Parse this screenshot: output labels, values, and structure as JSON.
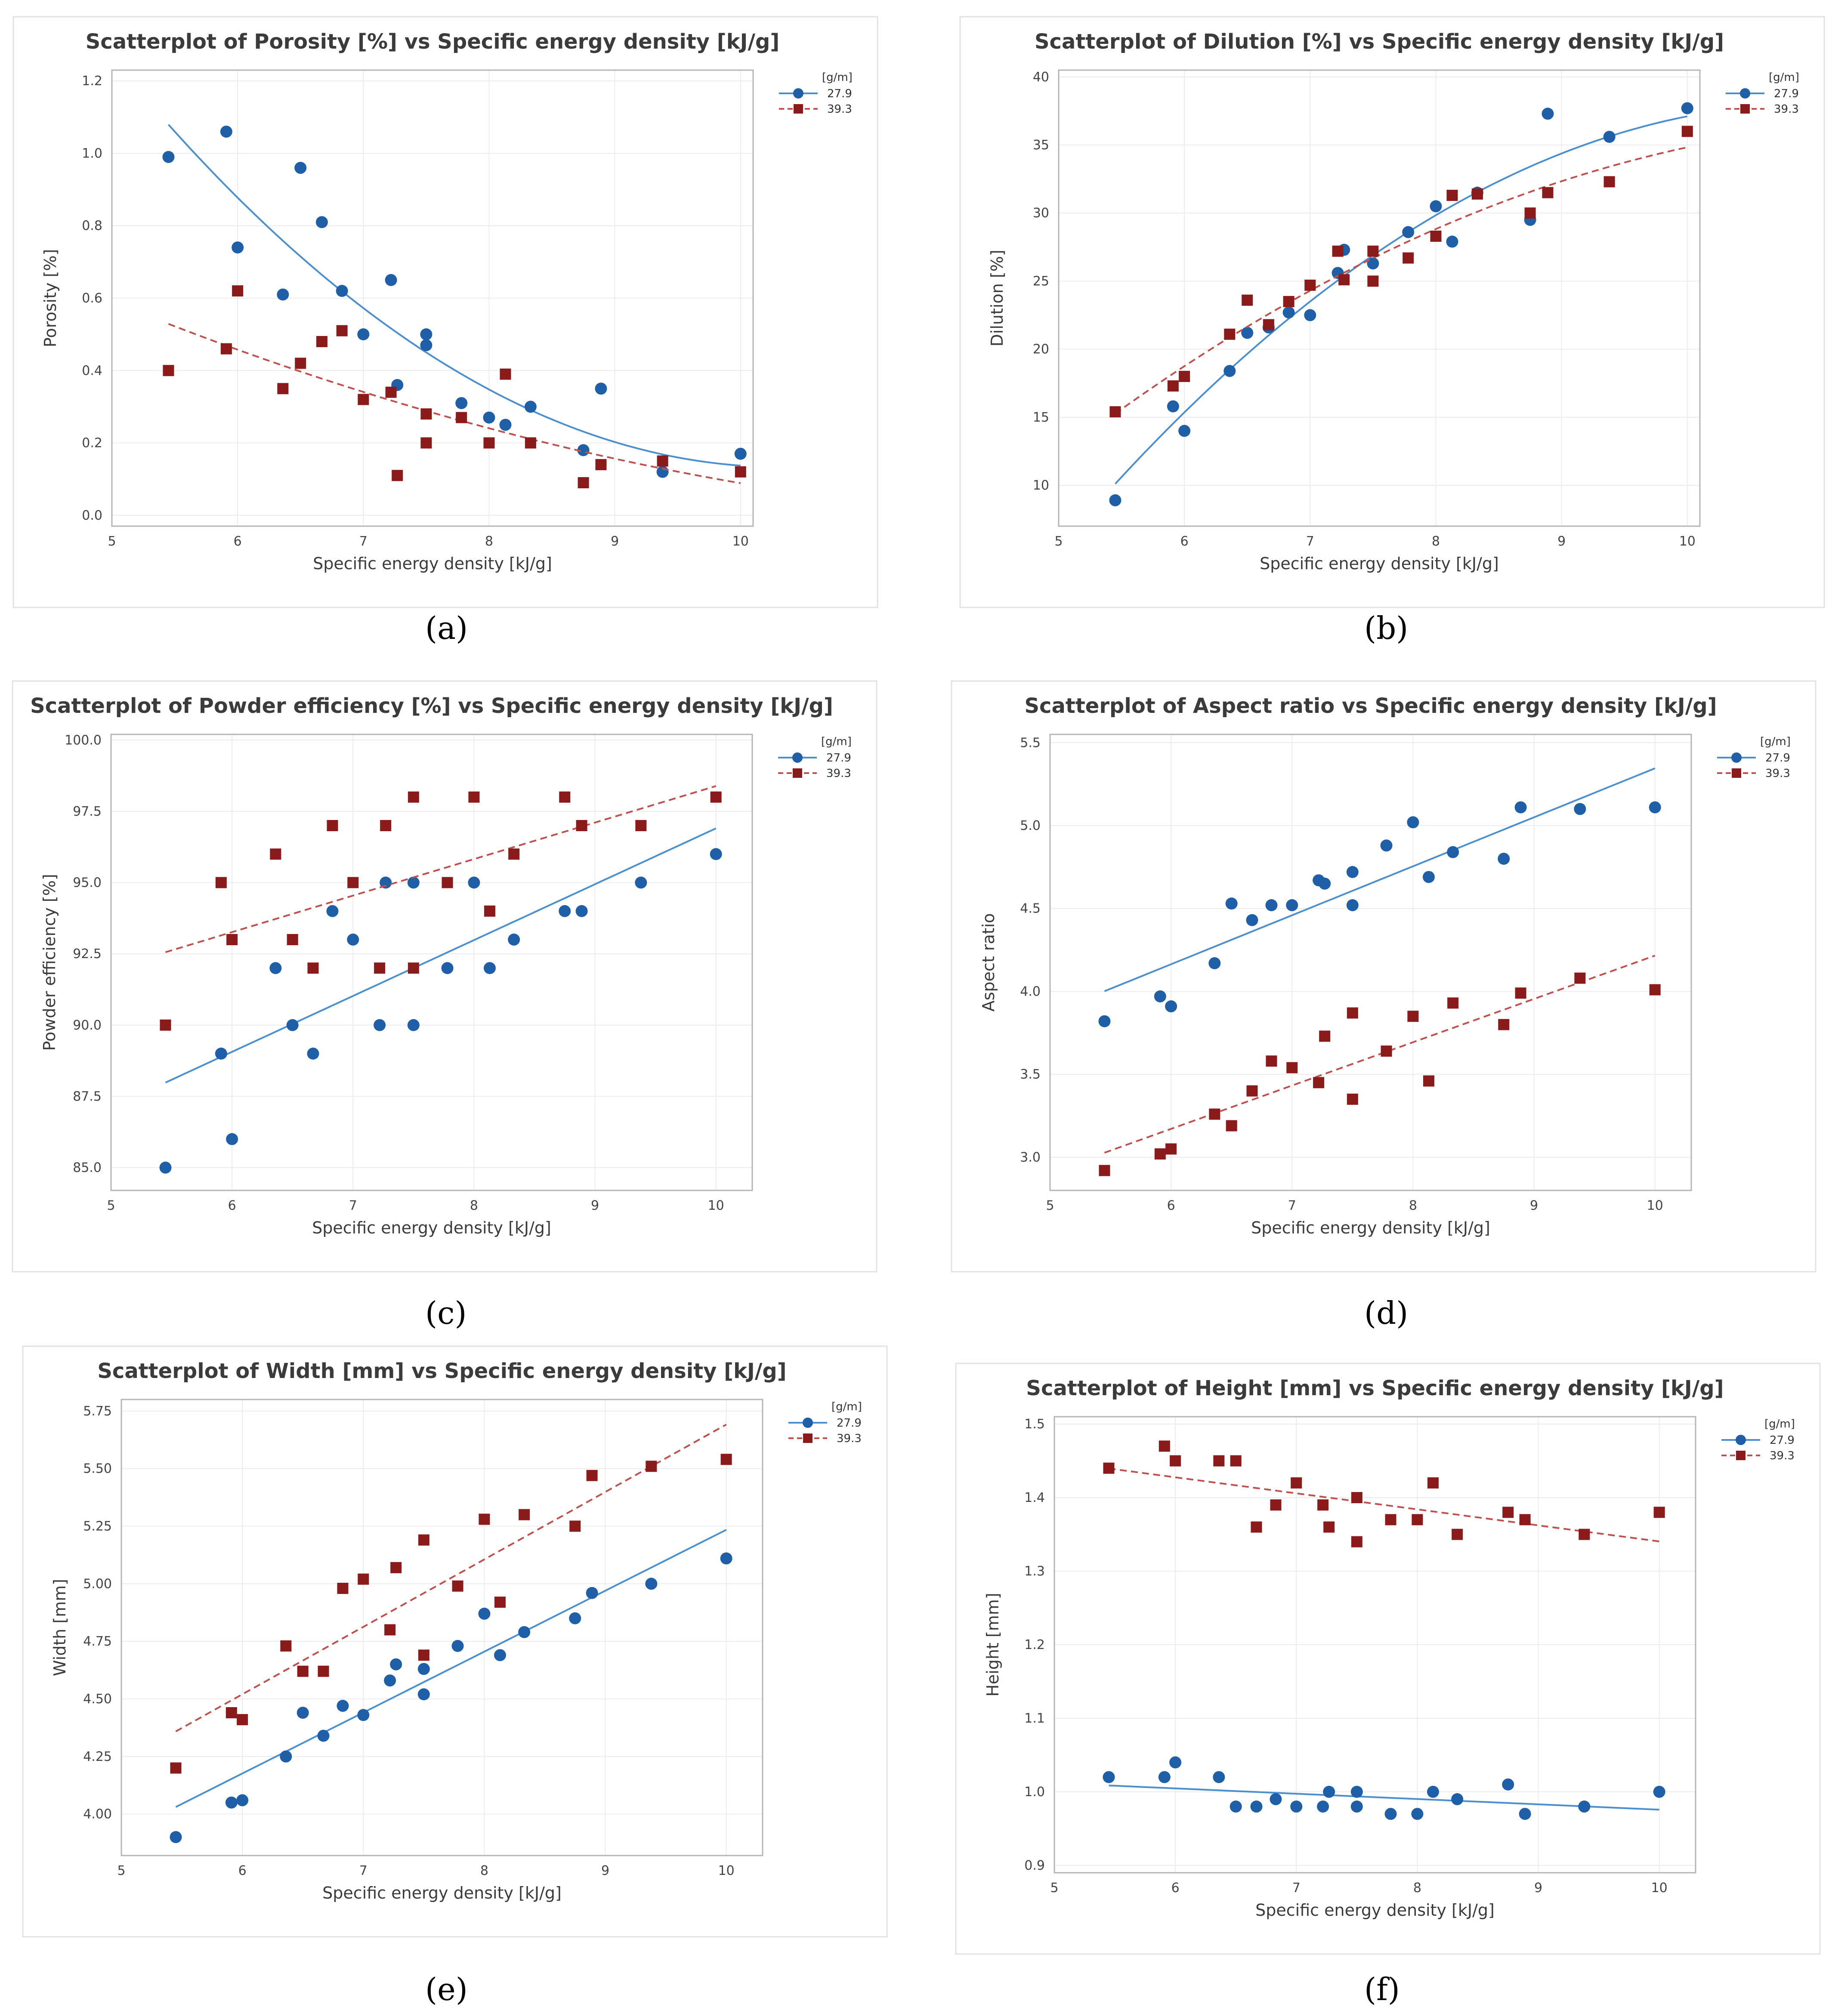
{
  "chart_data": [
    {
      "id": "a",
      "type": "scatter",
      "title": "Scatterplot of Porosity [%] vs Specific energy density [kJ/g]",
      "xlabel": "Specific energy density [kJ/g]",
      "ylabel": "Porosity [%]",
      "xlim": [
        5,
        10.1
      ],
      "ylim": [
        -0.03,
        1.23
      ],
      "xticks": [
        5,
        6,
        7,
        8,
        9,
        10
      ],
      "yticks": [
        0.0,
        0.2,
        0.4,
        0.6,
        0.8,
        1.0,
        1.2
      ],
      "ydec": 1,
      "legend_title": "[g/m]",
      "series": [
        {
          "name": "27.9",
          "marker": "circle",
          "color": "#1f5fa8",
          "line_color": "#4a8fce",
          "fit": "quadratic",
          "x": [
            5.45,
            5.91,
            6.0,
            6.36,
            6.5,
            6.67,
            6.83,
            7.0,
            7.22,
            7.27,
            7.5,
            7.5,
            7.78,
            8.0,
            8.13,
            8.33,
            8.75,
            8.89,
            9.38,
            10.0
          ],
          "y": [
            0.99,
            1.06,
            0.74,
            0.61,
            0.96,
            0.81,
            0.62,
            0.5,
            0.65,
            0.36,
            0.47,
            0.5,
            0.31,
            0.27,
            0.25,
            0.3,
            0.18,
            0.35,
            0.12,
            0.17
          ]
        },
        {
          "name": "39.3",
          "marker": "square",
          "color": "#8b1a1a",
          "line_color": "#c0504d",
          "fit": "quadratic",
          "dashed": true,
          "x": [
            5.45,
            5.91,
            6.0,
            6.36,
            6.5,
            6.67,
            6.83,
            7.0,
            7.22,
            7.27,
            7.5,
            7.5,
            7.78,
            8.0,
            8.13,
            8.33,
            8.75,
            8.89,
            9.38,
            10.0
          ],
          "y": [
            0.4,
            0.46,
            0.62,
            0.35,
            0.42,
            0.48,
            0.51,
            0.32,
            0.34,
            0.11,
            0.28,
            0.2,
            0.27,
            0.2,
            0.39,
            0.2,
            0.09,
            0.14,
            0.15,
            0.12
          ]
        }
      ]
    },
    {
      "id": "b",
      "type": "scatter",
      "title": "Scatterplot of Dilution [%] vs Specific energy density [kJ/g]",
      "xlabel": "Specific energy density [kJ/g]",
      "ylabel": "Dilution [%]",
      "xlim": [
        5,
        10.1
      ],
      "ylim": [
        7,
        40.5
      ],
      "xticks": [
        5,
        6,
        7,
        8,
        9,
        10
      ],
      "yticks": [
        10,
        15,
        20,
        25,
        30,
        35,
        40
      ],
      "ydec": 0,
      "legend_title": "[g/m]",
      "series": [
        {
          "name": "27.9",
          "marker": "circle",
          "color": "#1f5fa8",
          "line_color": "#4a8fce",
          "fit": "quadratic",
          "x": [
            5.45,
            5.91,
            6.0,
            6.36,
            6.5,
            6.67,
            6.83,
            7.0,
            7.22,
            7.27,
            7.5,
            7.78,
            8.0,
            8.13,
            8.33,
            8.75,
            8.89,
            9.38,
            10.0
          ],
          "y": [
            8.9,
            15.8,
            14.0,
            18.4,
            21.2,
            21.6,
            22.7,
            22.5,
            25.6,
            27.3,
            26.3,
            28.6,
            30.5,
            27.9,
            31.5,
            29.5,
            37.3,
            35.6,
            37.7
          ]
        },
        {
          "name": "39.3",
          "marker": "square",
          "color": "#8b1a1a",
          "line_color": "#c0504d",
          "fit": "quadratic",
          "dashed": true,
          "x": [
            5.45,
            5.91,
            6.0,
            6.36,
            6.5,
            6.67,
            6.83,
            7.0,
            7.22,
            7.27,
            7.5,
            7.5,
            7.78,
            8.0,
            8.13,
            8.33,
            8.75,
            8.89,
            9.38,
            10.0
          ],
          "y": [
            15.4,
            17.3,
            18.0,
            21.1,
            23.6,
            21.8,
            23.5,
            24.7,
            27.2,
            25.1,
            27.2,
            25.0,
            26.7,
            28.3,
            31.3,
            31.4,
            30.0,
            31.5,
            32.3,
            36.0
          ]
        }
      ]
    },
    {
      "id": "c",
      "type": "scatter",
      "title": "Scatterplot of Powder efficiency [%] vs Specific energy density [kJ/g]",
      "xlabel": "Specific energy density [kJ/g]",
      "ylabel": "Powder efficiency [%]",
      "xlim": [
        5,
        10.3
      ],
      "ylim": [
        84.2,
        100.2
      ],
      "xticks": [
        5,
        6,
        7,
        8,
        9,
        10
      ],
      "yticks": [
        85.0,
        87.5,
        90.0,
        92.5,
        95.0,
        97.5,
        100.0
      ],
      "ydec": 1,
      "legend_title": "[g/m]",
      "series": [
        {
          "name": "27.9",
          "marker": "circle",
          "color": "#1f5fa8",
          "line_color": "#4a8fce",
          "fit": "linear",
          "x": [
            5.45,
            5.91,
            6.0,
            6.36,
            6.5,
            6.67,
            6.83,
            7.0,
            7.22,
            7.27,
            7.5,
            7.5,
            7.78,
            8.0,
            8.13,
            8.33,
            8.75,
            8.89,
            9.38,
            10.0
          ],
          "y": [
            85,
            89,
            86,
            92,
            90,
            89,
            94,
            93,
            90,
            95,
            95,
            90,
            92,
            95,
            92,
            93,
            94,
            94,
            95,
            96
          ]
        },
        {
          "name": "39.3",
          "marker": "square",
          "color": "#8b1a1a",
          "line_color": "#c0504d",
          "fit": "linear",
          "dashed": true,
          "x": [
            5.45,
            5.91,
            6.0,
            6.36,
            6.5,
            6.67,
            6.83,
            7.0,
            7.22,
            7.27,
            7.5,
            7.5,
            7.78,
            8.0,
            8.13,
            8.33,
            8.75,
            8.89,
            9.38,
            10.0
          ],
          "y": [
            90,
            95,
            93,
            96,
            93,
            92,
            97,
            95,
            92,
            97,
            98,
            92,
            95,
            98,
            94,
            96,
            98,
            97,
            97,
            98
          ]
        }
      ]
    },
    {
      "id": "d",
      "type": "scatter",
      "title": "Scatterplot of Aspect ratio vs Specific energy density [kJ/g]",
      "xlabel": "Specific energy density [kJ/g]",
      "ylabel": "Aspect ratio",
      "xlim": [
        5,
        10.3
      ],
      "ylim": [
        2.8,
        5.55
      ],
      "xticks": [
        5,
        6,
        7,
        8,
        9,
        10
      ],
      "yticks": [
        3.0,
        3.5,
        4.0,
        4.5,
        5.0,
        5.5
      ],
      "ydec": 1,
      "legend_title": "[g/m]",
      "series": [
        {
          "name": "27.9",
          "marker": "circle",
          "color": "#1f5fa8",
          "line_color": "#4a8fce",
          "fit": "linear",
          "x": [
            5.45,
            5.91,
            6.0,
            6.36,
            6.5,
            6.67,
            6.83,
            7.0,
            7.22,
            7.27,
            7.5,
            7.5,
            7.78,
            8.0,
            8.13,
            8.33,
            8.75,
            8.89,
            9.38,
            10.0
          ],
          "y": [
            3.82,
            3.97,
            3.91,
            4.17,
            4.53,
            4.43,
            4.52,
            4.52,
            4.67,
            4.65,
            4.72,
            4.52,
            4.88,
            5.02,
            4.69,
            4.84,
            4.8,
            5.11,
            5.1,
            5.11
          ]
        },
        {
          "name": "39.3",
          "marker": "square",
          "color": "#8b1a1a",
          "line_color": "#c0504d",
          "fit": "linear",
          "dashed": true,
          "x": [
            5.45,
            5.91,
            6.0,
            6.36,
            6.5,
            6.67,
            6.83,
            7.0,
            7.22,
            7.27,
            7.5,
            7.5,
            7.78,
            8.0,
            8.13,
            8.33,
            8.75,
            8.89,
            9.38,
            10.0
          ],
          "y": [
            2.92,
            3.02,
            3.05,
            3.26,
            3.19,
            3.4,
            3.58,
            3.54,
            3.45,
            3.73,
            3.87,
            3.35,
            3.64,
            3.85,
            3.46,
            3.93,
            3.8,
            3.99,
            4.08,
            4.01
          ]
        }
      ]
    },
    {
      "id": "e",
      "type": "scatter",
      "title": "Scatterplot of Width [mm] vs Specific energy density [kJ/g]",
      "xlabel": "Specific energy density [kJ/g]",
      "ylabel": "Width [mm]",
      "xlim": [
        5,
        10.3
      ],
      "ylim": [
        3.82,
        5.8
      ],
      "xticks": [
        5,
        6,
        7,
        8,
        9,
        10
      ],
      "yticks": [
        4.0,
        4.25,
        4.5,
        4.75,
        5.0,
        5.25,
        5.5,
        5.75
      ],
      "ydec": 2,
      "legend_title": "[g/m]",
      "series": [
        {
          "name": "27.9",
          "marker": "circle",
          "color": "#1f5fa8",
          "line_color": "#4a8fce",
          "fit": "linear",
          "x": [
            5.45,
            5.91,
            6.0,
            6.36,
            6.5,
            6.67,
            6.83,
            7.0,
            7.22,
            7.27,
            7.5,
            7.5,
            7.78,
            8.0,
            8.13,
            8.33,
            8.75,
            8.89,
            9.38,
            10.0
          ],
          "y": [
            3.9,
            4.05,
            4.06,
            4.25,
            4.44,
            4.34,
            4.47,
            4.43,
            4.58,
            4.65,
            4.63,
            4.52,
            4.73,
            4.87,
            4.69,
            4.79,
            4.85,
            4.96,
            5.0,
            5.11
          ]
        },
        {
          "name": "39.3",
          "marker": "square",
          "color": "#8b1a1a",
          "line_color": "#c0504d",
          "fit": "linear",
          "dashed": true,
          "x": [
            5.45,
            5.91,
            6.0,
            6.36,
            6.5,
            6.67,
            6.83,
            7.0,
            7.22,
            7.27,
            7.5,
            7.5,
            7.78,
            8.0,
            8.13,
            8.33,
            8.75,
            8.89,
            9.38,
            10.0
          ],
          "y": [
            4.2,
            4.44,
            4.41,
            4.73,
            4.62,
            4.62,
            4.98,
            5.02,
            4.8,
            5.07,
            5.19,
            4.69,
            4.99,
            5.28,
            4.92,
            5.3,
            5.25,
            5.47,
            5.51,
            5.54
          ]
        }
      ]
    },
    {
      "id": "f",
      "type": "scatter",
      "title": "Scatterplot of Height [mm] vs Specific energy density [kJ/g]",
      "xlabel": "Specific energy density [kJ/g]",
      "ylabel": "Height [mm]",
      "xlim": [
        5,
        10.3
      ],
      "ylim": [
        0.89,
        1.51
      ],
      "xticks": [
        5,
        6,
        7,
        8,
        9,
        10
      ],
      "yticks": [
        0.9,
        1.0,
        1.1,
        1.2,
        1.3,
        1.4,
        1.5
      ],
      "ydec": 1,
      "legend_title": "[g/m]",
      "series": [
        {
          "name": "27.9",
          "marker": "circle",
          "color": "#1f5fa8",
          "line_color": "#4a8fce",
          "fit": "linear",
          "x": [
            5.45,
            5.91,
            6.0,
            6.36,
            6.5,
            6.67,
            6.83,
            7.0,
            7.22,
            7.27,
            7.5,
            7.5,
            7.78,
            8.0,
            8.13,
            8.33,
            8.75,
            8.89,
            9.38,
            10.0
          ],
          "y": [
            1.02,
            1.02,
            1.04,
            1.02,
            0.98,
            0.98,
            0.99,
            0.98,
            0.98,
            1.0,
            1.0,
            0.98,
            0.97,
            0.97,
            1.0,
            0.99,
            1.01,
            0.97,
            0.98,
            1.0
          ]
        },
        {
          "name": "39.3",
          "marker": "square",
          "color": "#8b1a1a",
          "line_color": "#c0504d",
          "fit": "linear",
          "dashed": true,
          "x": [
            5.45,
            5.91,
            6.0,
            6.36,
            6.5,
            6.67,
            6.83,
            7.0,
            7.22,
            7.27,
            7.5,
            7.5,
            7.78,
            8.0,
            8.13,
            8.33,
            8.75,
            8.89,
            9.38,
            10.0
          ],
          "y": [
            1.44,
            1.47,
            1.45,
            1.45,
            1.45,
            1.36,
            1.39,
            1.42,
            1.39,
            1.36,
            1.4,
            1.34,
            1.37,
            1.37,
            1.42,
            1.35,
            1.38,
            1.37,
            1.35,
            1.38
          ]
        }
      ]
    }
  ],
  "captions": [
    "(a)",
    "(b)",
    "(c)",
    "(d)",
    "(e)",
    "(f)"
  ]
}
